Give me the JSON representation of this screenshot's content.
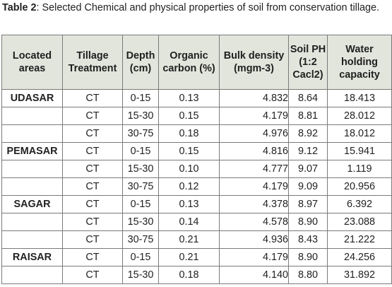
{
  "caption": {
    "label": "Table 2",
    "text": ": Selected Chemical and physical properties of soil from conservation tillage."
  },
  "columns": [
    "Located areas",
    "Tillage Treatment",
    "Depth (cm)",
    "Organic carbon (%)",
    "Bulk density (mgm-3)",
    "Soil PH (1:2 Cacl2)",
    "Water holding capacity"
  ],
  "rows": [
    {
      "area": "UDASAR",
      "treatment": "CT",
      "depth": "0-15",
      "oc": "0.13",
      "bd": "4.832",
      "ph": "8.64",
      "whc": "18.413"
    },
    {
      "area": "",
      "treatment": "CT",
      "depth": "15-30",
      "oc": "0.15",
      "bd": "4.179",
      "ph": "8.81",
      "whc": "28.012"
    },
    {
      "area": "",
      "treatment": "CT",
      "depth": "30-75",
      "oc": "0.18",
      "bd": "4.976",
      "ph": "8.92",
      "whc": "18.012"
    },
    {
      "area": "PEMASAR",
      "treatment": "CT",
      "depth": "0-15",
      "oc": "0.15",
      "bd": "4.816",
      "ph": "9.12",
      "whc": "15.941"
    },
    {
      "area": "",
      "treatment": "CT",
      "depth": "15-30",
      "oc": "0.10",
      "bd": "4.777",
      "ph": "9.07",
      "whc": "1.119"
    },
    {
      "area": "",
      "treatment": "CT",
      "depth": "30-75",
      "oc": "0.12",
      "bd": "4.179",
      "ph": "9.09",
      "whc": "20.956"
    },
    {
      "area": "SAGAR",
      "treatment": "CT",
      "depth": "0-15",
      "oc": "0.13",
      "bd": "4.378",
      "ph": "8.97",
      "whc": "6.392"
    },
    {
      "area": "",
      "treatment": "CT",
      "depth": "15-30",
      "oc": "0.14",
      "bd": "4.578",
      "ph": "8.90",
      "whc": "23.088"
    },
    {
      "area": "",
      "treatment": "CT",
      "depth": "30-75",
      "oc": "0.21",
      "bd": "4.936",
      "ph": "8.43",
      "whc": "21.222"
    },
    {
      "area": "RAISAR",
      "treatment": "CT",
      "depth": "0-15",
      "oc": "0.21",
      "bd": "4.179",
      "ph": "8.90",
      "whc": "24.256"
    },
    {
      "area": "",
      "treatment": "CT",
      "depth": "15-30",
      "oc": "0.18",
      "bd": "4.140",
      "ph": "8.80",
      "whc": "31.892"
    }
  ]
}
